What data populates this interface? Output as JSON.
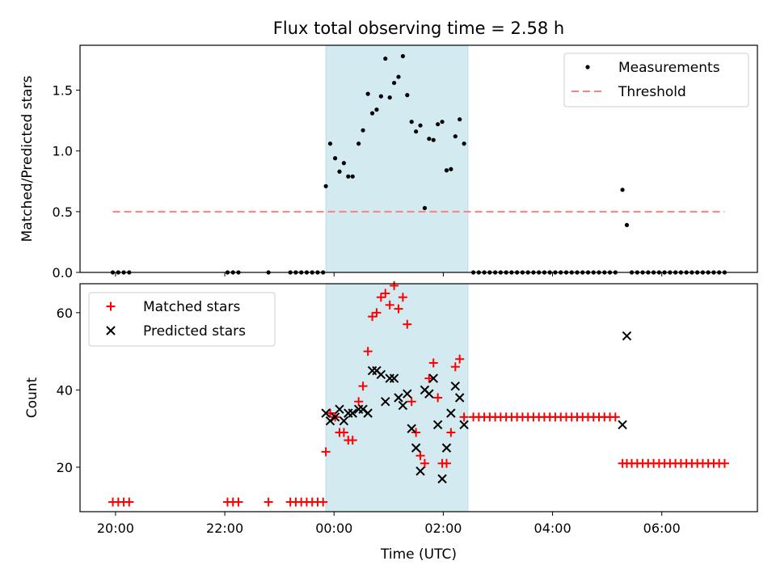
{
  "chart_data": {
    "type": "scatter",
    "title": "Flux total observing time = 2.58 h",
    "xlabel": "Time (UTC)",
    "x_ticks": [
      "20:00",
      "22:00",
      "00:00",
      "02:00",
      "04:00",
      "06:00"
    ],
    "x_tick_hours": [
      20,
      22,
      24,
      26,
      28,
      30
    ],
    "xlim_hours": [
      19.35,
      31.75
    ],
    "shaded_interval_hours": [
      23.85,
      26.45
    ],
    "shade_color": "#d3eaf0",
    "panels": [
      {
        "ylabel": "Matched/Predicted stars",
        "ylim": [
          0,
          1.87
        ],
        "y_ticks": [
          0.0,
          0.5,
          1.0,
          1.5
        ],
        "y_tick_labels": [
          "0.0",
          "0.5",
          "1.0",
          "1.5"
        ],
        "legend": [
          "Measurements",
          "Threshold"
        ],
        "legend_loc": "upper right",
        "threshold": {
          "value": 0.5,
          "x_range_hours": [
            19.95,
            31.15
          ],
          "color": "#ff7f7f",
          "style": "dashed"
        },
        "series": [
          {
            "name": "Measurements",
            "marker": "dot",
            "color": "#000000",
            "points": [
              [
                19.95,
                0
              ],
              [
                20.05,
                0
              ],
              [
                20.15,
                0
              ],
              [
                20.25,
                0
              ],
              [
                22.05,
                0
              ],
              [
                22.15,
                0
              ],
              [
                22.25,
                0
              ],
              [
                22.8,
                0
              ],
              [
                23.2,
                0
              ],
              [
                23.3,
                0
              ],
              [
                23.4,
                0
              ],
              [
                23.5,
                0
              ],
              [
                23.6,
                0
              ],
              [
                23.7,
                0
              ],
              [
                23.8,
                0
              ],
              [
                23.85,
                0.71
              ],
              [
                23.93,
                1.06
              ],
              [
                24.02,
                0.94
              ],
              [
                24.1,
                0.83
              ],
              [
                24.18,
                0.9
              ],
              [
                24.26,
                0.79
              ],
              [
                24.34,
                0.79
              ],
              [
                24.45,
                1.06
              ],
              [
                24.53,
                1.17
              ],
              [
                24.62,
                1.47
              ],
              [
                24.7,
                1.31
              ],
              [
                24.78,
                1.34
              ],
              [
                24.86,
                1.45
              ],
              [
                24.94,
                1.76
              ],
              [
                25.02,
                1.44
              ],
              [
                25.1,
                1.56
              ],
              [
                25.18,
                1.61
              ],
              [
                25.26,
                1.78
              ],
              [
                25.34,
                1.46
              ],
              [
                25.42,
                1.24
              ],
              [
                25.5,
                1.16
              ],
              [
                25.58,
                1.21
              ],
              [
                25.66,
                0.53
              ],
              [
                25.74,
                1.1
              ],
              [
                25.82,
                1.09
              ],
              [
                25.9,
                1.22
              ],
              [
                25.98,
                1.24
              ],
              [
                26.06,
                0.84
              ],
              [
                26.14,
                0.85
              ],
              [
                26.22,
                1.12
              ],
              [
                26.3,
                1.26
              ],
              [
                26.38,
                1.06
              ],
              [
                26.55,
                0
              ],
              [
                26.65,
                0
              ],
              [
                26.75,
                0
              ],
              [
                26.85,
                0
              ],
              [
                26.95,
                0
              ],
              [
                27.05,
                0
              ],
              [
                27.15,
                0
              ],
              [
                27.25,
                0
              ],
              [
                27.35,
                0
              ],
              [
                27.45,
                0
              ],
              [
                27.55,
                0
              ],
              [
                27.65,
                0
              ],
              [
                27.75,
                0
              ],
              [
                27.85,
                0
              ],
              [
                27.95,
                0
              ],
              [
                28.05,
                0
              ],
              [
                28.15,
                0
              ],
              [
                28.25,
                0
              ],
              [
                28.35,
                0
              ],
              [
                28.45,
                0
              ],
              [
                28.55,
                0
              ],
              [
                28.65,
                0
              ],
              [
                28.75,
                0
              ],
              [
                28.85,
                0
              ],
              [
                28.95,
                0
              ],
              [
                29.05,
                0
              ],
              [
                29.15,
                0
              ],
              [
                29.28,
                0.68
              ],
              [
                29.36,
                0.39
              ],
              [
                29.45,
                0
              ],
              [
                29.55,
                0
              ],
              [
                29.65,
                0
              ],
              [
                29.75,
                0
              ],
              [
                29.85,
                0
              ],
              [
                29.95,
                0
              ],
              [
                30.05,
                0
              ],
              [
                30.15,
                0
              ],
              [
                30.25,
                0
              ],
              [
                30.35,
                0
              ],
              [
                30.45,
                0
              ],
              [
                30.55,
                0
              ],
              [
                30.65,
                0
              ],
              [
                30.75,
                0
              ],
              [
                30.85,
                0
              ],
              [
                30.95,
                0
              ],
              [
                31.05,
                0
              ],
              [
                31.15,
                0
              ]
            ]
          }
        ]
      },
      {
        "ylabel": "Count",
        "ylim": [
          8.5,
          67.5
        ],
        "y_ticks": [
          20,
          40,
          60
        ],
        "y_tick_labels": [
          "20",
          "40",
          "60"
        ],
        "legend": [
          "Matched stars",
          "Predicted stars"
        ],
        "legend_loc": "upper left",
        "series": [
          {
            "name": "Matched stars",
            "marker": "plus",
            "color": "#ff0000",
            "points": [
              [
                19.95,
                11
              ],
              [
                20.05,
                11
              ],
              [
                20.15,
                11
              ],
              [
                20.25,
                11
              ],
              [
                22.05,
                11
              ],
              [
                22.15,
                11
              ],
              [
                22.25,
                11
              ],
              [
                22.8,
                11
              ],
              [
                23.2,
                11
              ],
              [
                23.3,
                11
              ],
              [
                23.4,
                11
              ],
              [
                23.5,
                11
              ],
              [
                23.6,
                11
              ],
              [
                23.7,
                11
              ],
              [
                23.8,
                11
              ],
              [
                23.85,
                24
              ],
              [
                23.93,
                34
              ],
              [
                24.02,
                33
              ],
              [
                24.1,
                29
              ],
              [
                24.18,
                29
              ],
              [
                24.26,
                27
              ],
              [
                24.34,
                27
              ],
              [
                24.45,
                37
              ],
              [
                24.53,
                41
              ],
              [
                24.62,
                50
              ],
              [
                24.7,
                59
              ],
              [
                24.78,
                60
              ],
              [
                24.86,
                64
              ],
              [
                24.94,
                65
              ],
              [
                25.02,
                62
              ],
              [
                25.1,
                67
              ],
              [
                25.18,
                61
              ],
              [
                25.26,
                64
              ],
              [
                25.34,
                57
              ],
              [
                25.42,
                37
              ],
              [
                25.5,
                29
              ],
              [
                25.58,
                23
              ],
              [
                25.66,
                21
              ],
              [
                25.74,
                43
              ],
              [
                25.82,
                47
              ],
              [
                25.9,
                38
              ],
              [
                25.98,
                21
              ],
              [
                26.06,
                21
              ],
              [
                26.14,
                29
              ],
              [
                26.22,
                46
              ],
              [
                26.3,
                48
              ],
              [
                26.38,
                33
              ],
              [
                26.55,
                33
              ],
              [
                26.65,
                33
              ],
              [
                26.75,
                33
              ],
              [
                26.85,
                33
              ],
              [
                26.95,
                33
              ],
              [
                27.05,
                33
              ],
              [
                27.15,
                33
              ],
              [
                27.25,
                33
              ],
              [
                27.35,
                33
              ],
              [
                27.45,
                33
              ],
              [
                27.55,
                33
              ],
              [
                27.65,
                33
              ],
              [
                27.75,
                33
              ],
              [
                27.85,
                33
              ],
              [
                27.95,
                33
              ],
              [
                28.05,
                33
              ],
              [
                28.15,
                33
              ],
              [
                28.25,
                33
              ],
              [
                28.35,
                33
              ],
              [
                28.45,
                33
              ],
              [
                28.55,
                33
              ],
              [
                28.65,
                33
              ],
              [
                28.75,
                33
              ],
              [
                28.85,
                33
              ],
              [
                28.95,
                33
              ],
              [
                29.05,
                33
              ],
              [
                29.15,
                33
              ],
              [
                29.28,
                21
              ],
              [
                29.36,
                21
              ],
              [
                29.45,
                21
              ],
              [
                29.55,
                21
              ],
              [
                29.65,
                21
              ],
              [
                29.75,
                21
              ],
              [
                29.85,
                21
              ],
              [
                29.95,
                21
              ],
              [
                30.05,
                21
              ],
              [
                30.15,
                21
              ],
              [
                30.25,
                21
              ],
              [
                30.35,
                21
              ],
              [
                30.45,
                21
              ],
              [
                30.55,
                21
              ],
              [
                30.65,
                21
              ],
              [
                30.75,
                21
              ],
              [
                30.85,
                21
              ],
              [
                30.95,
                21
              ],
              [
                31.05,
                21
              ],
              [
                31.15,
                21
              ]
            ]
          },
          {
            "name": "Predicted stars",
            "marker": "x",
            "color": "#000000",
            "points": [
              [
                23.85,
                34
              ],
              [
                23.93,
                32
              ],
              [
                24.02,
                33
              ],
              [
                24.1,
                35
              ],
              [
                24.18,
                32
              ],
              [
                24.26,
                34
              ],
              [
                24.34,
                34
              ],
              [
                24.45,
                35
              ],
              [
                24.53,
                35
              ],
              [
                24.62,
                34
              ],
              [
                24.7,
                45
              ],
              [
                24.78,
                45
              ],
              [
                24.86,
                44
              ],
              [
                24.94,
                37
              ],
              [
                25.02,
                43
              ],
              [
                25.1,
                43
              ],
              [
                25.18,
                38
              ],
              [
                25.26,
                36
              ],
              [
                25.34,
                39
              ],
              [
                25.42,
                30
              ],
              [
                25.5,
                25
              ],
              [
                25.58,
                19
              ],
              [
                25.66,
                40
              ],
              [
                25.74,
                39
              ],
              [
                25.82,
                43
              ],
              [
                25.9,
                31
              ],
              [
                25.98,
                17
              ],
              [
                26.06,
                25
              ],
              [
                26.14,
                34
              ],
              [
                26.22,
                41
              ],
              [
                26.3,
                38
              ],
              [
                26.38,
                31
              ],
              [
                29.28,
                31
              ],
              [
                29.36,
                54
              ]
            ]
          }
        ]
      }
    ]
  }
}
